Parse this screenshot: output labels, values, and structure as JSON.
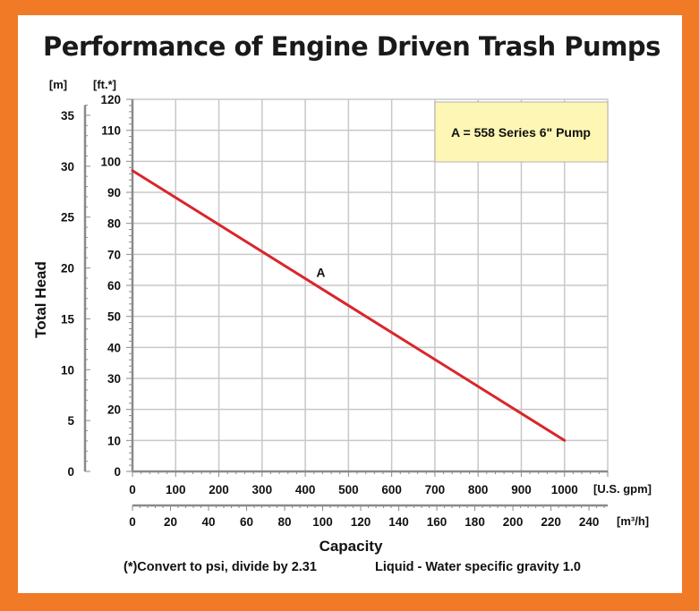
{
  "title": "Performance of Engine Driven Trash Pumps",
  "colors": {
    "frame": "#f07a26",
    "series_line": "#d9262b",
    "legend_fill": "#fdf6b4",
    "grid": "#c8c8c8"
  },
  "chart_data": {
    "type": "line",
    "title": "Performance of Engine Driven Trash Pumps",
    "ylabel": "Total Head",
    "xlabel": "Capacity",
    "x_unit_primary": "[U.S. gpm]",
    "x_unit_secondary": "[m³/h]",
    "y_unit_left": "[m]",
    "y_unit_right": "[ft.*]",
    "xlim": [
      0,
      1100
    ],
    "ylim": [
      0,
      120
    ],
    "x_ticks": [
      0,
      100,
      200,
      300,
      400,
      500,
      600,
      700,
      800,
      900,
      1000
    ],
    "y_ticks": [
      0,
      10,
      20,
      30,
      40,
      50,
      60,
      70,
      80,
      90,
      100,
      110,
      120
    ],
    "y_ticks_m": [
      0,
      5,
      10,
      15,
      20,
      25,
      30,
      35
    ],
    "x_ticks_m3h": [
      0,
      20,
      40,
      60,
      80,
      100,
      120,
      140,
      160,
      180,
      200,
      220,
      240
    ],
    "grid": true,
    "legend_text": "A = 558 Series 6\" Pump",
    "legend_position": "top-right",
    "series": [
      {
        "name": "A",
        "x": [
          0,
          1000
        ],
        "y": [
          97,
          10
        ]
      }
    ],
    "footnote_left": "(*)Convert to psi, divide by 2.31",
    "footnote_right": "Liquid - Water specific gravity 1.0"
  }
}
